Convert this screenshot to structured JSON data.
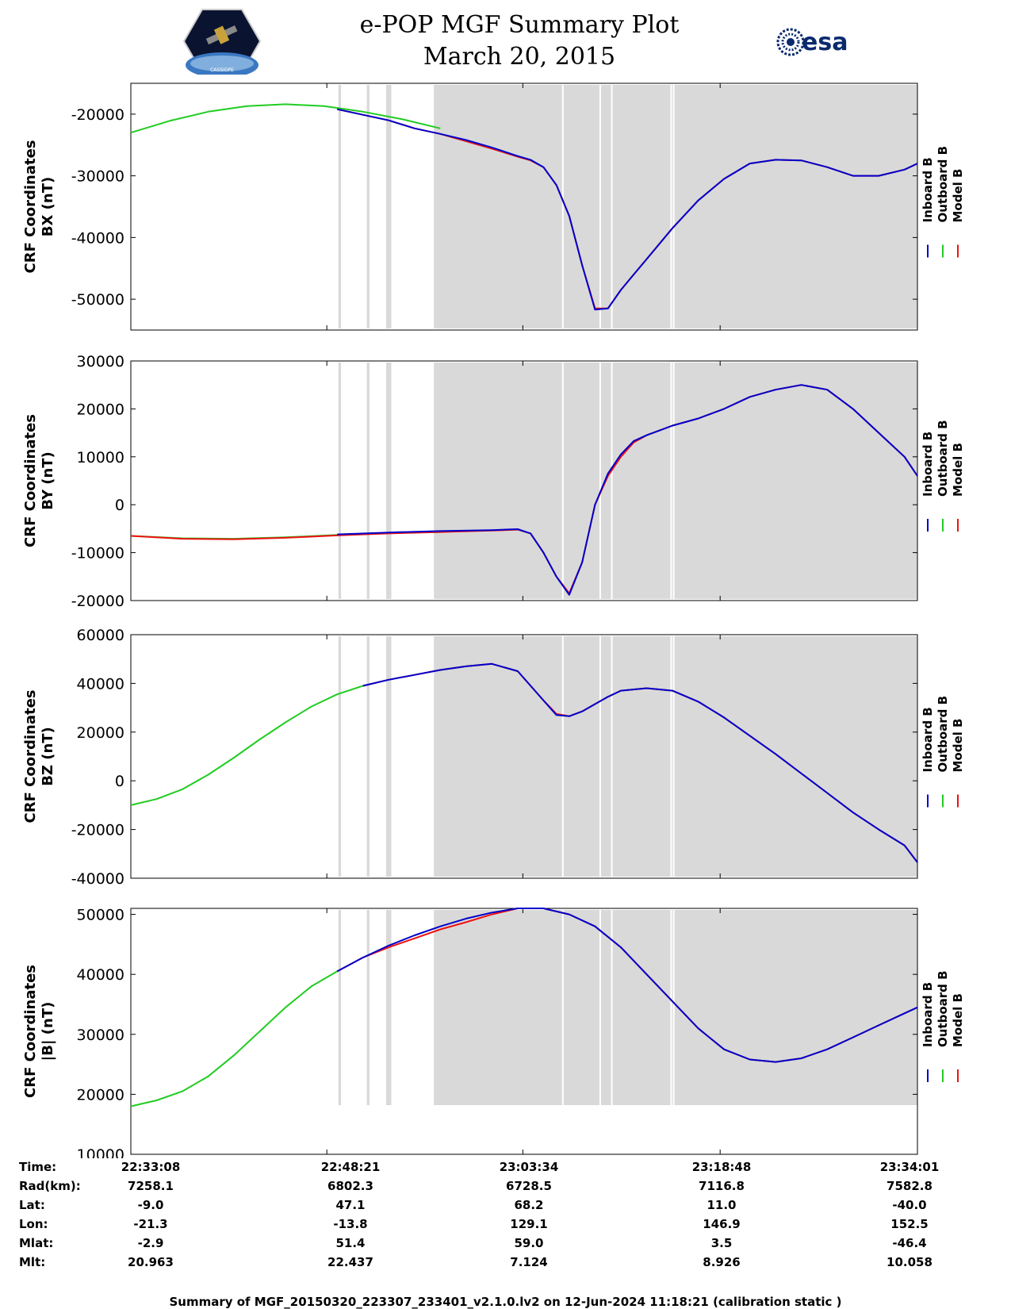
{
  "header": {
    "title": "e-POP MGF Summary Plot",
    "date": "March 20, 2015",
    "mission_logo_text": "CASSIOPE",
    "agency_logo_text": "esa"
  },
  "legend": {
    "inboard": "Inboard B",
    "outboard": "Outboard B",
    "model": "Model B"
  },
  "colors": {
    "inboard": "#0000cc",
    "outboard": "#22cc22",
    "model": "#ee1111",
    "shading": "#d9d9d9"
  },
  "chart_data": [
    {
      "type": "line",
      "ylabel_line1": "CRF Coordinates",
      "ylabel_line2": "BX (nT)",
      "ylim": [
        -55000,
        -15000
      ],
      "yticks": [
        -50000,
        -40000,
        -30000,
        -20000
      ],
      "ytick_labels": [
        "-50000",
        "-40000",
        "-30000",
        "-20000"
      ],
      "xlim_min": [
        0,
        61
      ],
      "series": [
        {
          "name": "Outboard B",
          "x": [
            0,
            3,
            6,
            9,
            12,
            15,
            18,
            21,
            24
          ],
          "y": [
            -23000,
            -21100,
            -19600,
            -18700,
            -18400,
            -18700,
            -19600,
            -20800,
            -22300
          ]
        },
        {
          "name": "Model B",
          "x": [
            16,
            20,
            22,
            24,
            26,
            28,
            30,
            31,
            32,
            33,
            34,
            35,
            36,
            37,
            38,
            39,
            40,
            42,
            44,
            46,
            48,
            50,
            52,
            54,
            56,
            58,
            60,
            61
          ],
          "y": [
            -19200,
            -21000,
            -22300,
            -23200,
            -24400,
            -25600,
            -26900,
            -27500,
            -28600,
            -31500,
            -36500,
            -44500,
            -51500,
            -51500,
            -48500,
            -46000,
            -43500,
            -38500,
            -34000,
            -30500,
            -28000,
            -27400,
            -27500,
            -28600,
            -30000,
            -30000,
            -29000,
            -28000
          ]
        },
        {
          "name": "Inboard B",
          "x": [
            16,
            20,
            22,
            24,
            26,
            28,
            30,
            31,
            32,
            33,
            34,
            35,
            36,
            37,
            38,
            39,
            40,
            42,
            44,
            46,
            48,
            50,
            52,
            54,
            56,
            58,
            60,
            61
          ],
          "y": [
            -19200,
            -21000,
            -22300,
            -23200,
            -24200,
            -25400,
            -26800,
            -27400,
            -28600,
            -31500,
            -36500,
            -44500,
            -51700,
            -51500,
            -48500,
            -46000,
            -43500,
            -38500,
            -34000,
            -30500,
            -28000,
            -27400,
            -27500,
            -28600,
            -30000,
            -30000,
            -29000,
            -28000
          ]
        }
      ]
    },
    {
      "type": "line",
      "ylabel_line1": "CRF Coordinates",
      "ylabel_line2": "BY (nT)",
      "ylim": [
        -20000,
        30000
      ],
      "yticks": [
        -20000,
        -10000,
        0,
        10000,
        20000,
        30000
      ],
      "ytick_labels": [
        "-20000",
        "-10000",
        "0",
        "10000",
        "20000",
        "30000"
      ],
      "series": [
        {
          "name": "Outboard B",
          "x": [
            0,
            4,
            8,
            12,
            16,
            20,
            24
          ],
          "y": [
            -6500,
            -7000,
            -7100,
            -6800,
            -6300,
            -5900,
            -5700
          ]
        },
        {
          "name": "Model B",
          "x": [
            0,
            4,
            8,
            12,
            16,
            20,
            24,
            28,
            30,
            31,
            32,
            33,
            34,
            35,
            36,
            37,
            38,
            39,
            40,
            41,
            42,
            44,
            46,
            48,
            50,
            52,
            54,
            56,
            58,
            60,
            61
          ],
          "y": [
            -6500,
            -7100,
            -7200,
            -6900,
            -6400,
            -6000,
            -5700,
            -5400,
            -5200,
            -6000,
            -10000,
            -15000,
            -18500,
            -12000,
            0,
            6000,
            10000,
            13000,
            14500,
            15500,
            16500,
            18000,
            20000,
            22500,
            24000,
            25000,
            24000,
            20000,
            15000,
            10000,
            6000
          ]
        },
        {
          "name": "Inboard B",
          "x": [
            16,
            20,
            24,
            28,
            30,
            31,
            32,
            33,
            34,
            35,
            36,
            37,
            38,
            39,
            40,
            41,
            42,
            44,
            46,
            48,
            50,
            52,
            54,
            56,
            58,
            60,
            61
          ],
          "y": [
            -6200,
            -5800,
            -5500,
            -5300,
            -5100,
            -6000,
            -10000,
            -15000,
            -18800,
            -12000,
            0,
            6500,
            10500,
            13300,
            14500,
            15500,
            16500,
            18000,
            20000,
            22500,
            24000,
            25000,
            24000,
            20000,
            15000,
            10000,
            6000
          ]
        }
      ]
    },
    {
      "type": "line",
      "ylabel_line1": "CRF Coordinates",
      "ylabel_line2": "BZ (nT)",
      "ylim": [
        -40000,
        60000
      ],
      "yticks": [
        -40000,
        -20000,
        0,
        20000,
        40000,
        60000
      ],
      "ytick_labels": [
        "-40000",
        "-20000",
        "0",
        "20000",
        "40000",
        "60000"
      ],
      "series": [
        {
          "name": "Outboard B",
          "x": [
            0,
            2,
            4,
            6,
            8,
            10,
            12,
            14,
            16,
            18
          ],
          "y": [
            -10000,
            -7500,
            -3500,
            2500,
            9500,
            17000,
            24000,
            30500,
            35500,
            39000
          ]
        },
        {
          "name": "Model B",
          "x": [
            18,
            20,
            22,
            24,
            26,
            28,
            30,
            32,
            33,
            34,
            35,
            36,
            37,
            38,
            40,
            42,
            44,
            46,
            48,
            50,
            52,
            54,
            56,
            58,
            60,
            61
          ],
          "y": [
            39000,
            41500,
            43500,
            45500,
            47000,
            48000,
            45000,
            33000,
            27500,
            26500,
            28500,
            31500,
            34500,
            37000,
            38000,
            37000,
            32500,
            26000,
            18500,
            11000,
            3000,
            -5000,
            -13000,
            -20000,
            -26500,
            -33500
          ]
        },
        {
          "name": "Inboard B",
          "x": [
            18,
            20,
            22,
            24,
            26,
            28,
            30,
            32,
            33,
            34,
            35,
            36,
            37,
            38,
            40,
            42,
            44,
            46,
            48,
            50,
            52,
            54,
            56,
            58,
            60,
            61
          ],
          "y": [
            39000,
            41500,
            43500,
            45500,
            47000,
            48000,
            45000,
            33000,
            27000,
            26500,
            28500,
            31500,
            34500,
            37000,
            38000,
            37000,
            32500,
            26000,
            18500,
            11000,
            3000,
            -5000,
            -13000,
            -20000,
            -26500,
            -33500
          ]
        }
      ]
    },
    {
      "type": "line",
      "ylabel_line1": "CRF Coordinates",
      "ylabel_line2": "|B| (nT)",
      "ylim": [
        10000,
        51000
      ],
      "yticks": [
        10000,
        20000,
        30000,
        40000,
        50000
      ],
      "ytick_labels": [
        "10000",
        "20000",
        "30000",
        "40000",
        "50000"
      ],
      "series": [
        {
          "name": "Outboard B",
          "x": [
            0,
            2,
            4,
            6,
            8,
            10,
            12,
            14,
            16
          ],
          "y": [
            18000,
            19000,
            20500,
            23000,
            26500,
            30500,
            34500,
            38000,
            40500
          ]
        },
        {
          "name": "Model B",
          "x": [
            16,
            18,
            20,
            22,
            24,
            26,
            28,
            30,
            32,
            34,
            36,
            38,
            40,
            42,
            44,
            46,
            48,
            50,
            52,
            54,
            56,
            58,
            60,
            61
          ],
          "y": [
            40500,
            42800,
            44500,
            46000,
            47500,
            48700,
            50000,
            51000,
            51000,
            50000,
            48000,
            44500,
            40000,
            35500,
            31000,
            27500,
            25800,
            25400,
            26000,
            27500,
            29500,
            31500,
            33500,
            34500
          ]
        },
        {
          "name": "Inboard B",
          "x": [
            16,
            18,
            20,
            22,
            24,
            26,
            28,
            30,
            32,
            34,
            36,
            38,
            40,
            42,
            44,
            46,
            48,
            50,
            52,
            54,
            56,
            58,
            60,
            61
          ],
          "y": [
            40500,
            42800,
            44800,
            46500,
            48000,
            49300,
            50300,
            51000,
            51000,
            50000,
            48000,
            44500,
            40000,
            35500,
            31000,
            27500,
            25800,
            25400,
            26000,
            27500,
            29500,
            31500,
            33500,
            34500
          ]
        }
      ]
    }
  ],
  "shading_min": [
    {
      "start": 16.1,
      "end": 16.3
    },
    {
      "start": 18.3,
      "end": 18.5
    },
    {
      "start": 19.8,
      "end": 20.2
    },
    {
      "start": 23.5,
      "end": 61
    }
  ],
  "gaps_min": [
    33.5,
    36.4,
    37.3,
    41.9,
    42.1
  ],
  "x_total_min": 61,
  "x_ticks_min": [
    0,
    15.2,
    30.4,
    45.7,
    61
  ],
  "info_table": {
    "labels": [
      "Time:",
      "Rad(km):",
      "Lat:",
      "Lon:",
      "Mlat:",
      "Mlt:"
    ],
    "columns": [
      [
        "22:33:08",
        "7258.1",
        "-9.0",
        "-21.3",
        "-2.9",
        "20.963"
      ],
      [
        "22:48:21",
        "6802.3",
        "47.1",
        "-13.8",
        "51.4",
        "22.437"
      ],
      [
        "23:03:34",
        "6728.5",
        "68.2",
        "129.1",
        "59.0",
        "7.124"
      ],
      [
        "23:18:48",
        "7116.8",
        "11.0",
        "146.9",
        "3.5",
        "8.926"
      ],
      [
        "23:34:01",
        "7582.8",
        "-40.0",
        "152.5",
        "-46.4",
        "10.058"
      ]
    ]
  },
  "footer": "Summary of MGF_20150320_223307_233401_v2.1.0.lv2 on 12-Jun-2024 11:18:21 (calibration static )"
}
